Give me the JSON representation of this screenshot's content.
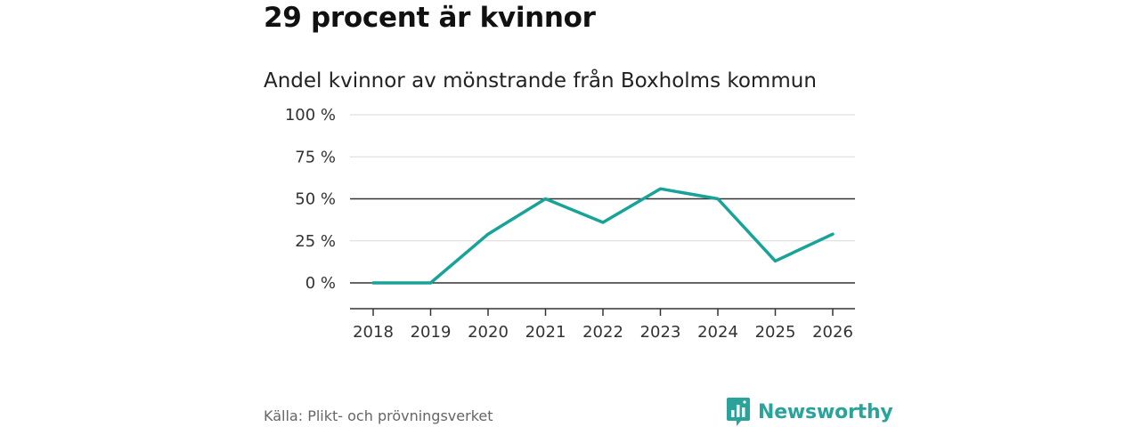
{
  "headline": "29 procent är kvinnor",
  "source": "Källa: Plikt- och prövningsverket",
  "brand": {
    "name": "Newsworthy",
    "color": "#2aa39a"
  },
  "chart_data": {
    "type": "line",
    "title": "Andel kvinnor av mönstrande från Boxholms kommun",
    "xlabel": "",
    "ylabel": "",
    "categories": [
      "2018",
      "2019",
      "2020",
      "2021",
      "2022",
      "2023",
      "2024",
      "2025",
      "2026"
    ],
    "series": [
      {
        "name": "Andel kvinnor",
        "color": "#17a398",
        "values": [
          0,
          0,
          29,
          50,
          36,
          56,
          50,
          13,
          29
        ]
      }
    ],
    "ylim": [
      -15,
      100
    ],
    "yticks": [
      0,
      25,
      50,
      75,
      100
    ],
    "ytick_labels": [
      "0 %",
      "25 %",
      "50 %",
      "75 %",
      "100 %"
    ],
    "grid": true
  }
}
